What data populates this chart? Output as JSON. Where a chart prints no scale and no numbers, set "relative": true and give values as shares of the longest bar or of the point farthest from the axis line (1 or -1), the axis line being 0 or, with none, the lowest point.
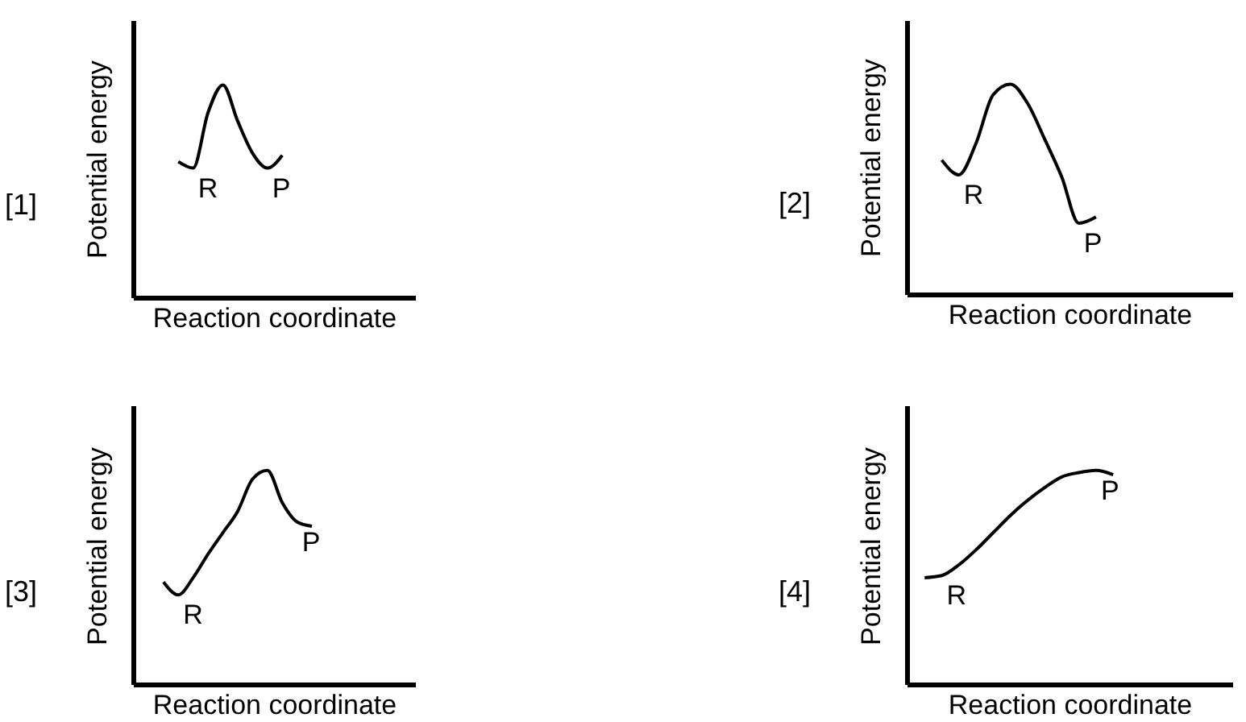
{
  "chart_data": [
    {
      "type": "line",
      "title": "[1]",
      "xlabel": "Reaction coordinate",
      "ylabel": "Potential energy",
      "relative": true,
      "categories": [
        null,
        null,
        null,
        null,
        null,
        null,
        null,
        null,
        null,
        null,
        null,
        null,
        null,
        null,
        null,
        null,
        null,
        null,
        null,
        null
      ],
      "series": [
        {
          "color": "#000000",
          "values": [
            null,
            null,
            null,
            0.64,
            0.61,
            0.87,
            1,
            0.83,
            0.68,
            0.61,
            0.67,
            null,
            null,
            null,
            null,
            null,
            null,
            null,
            null,
            null
          ]
        }
      ],
      "annotations": [
        "R",
        "P"
      ]
    },
    {
      "type": "line",
      "title": "[2]",
      "xlabel": "Reaction coordinate",
      "ylabel": "Potential energy",
      "relative": true,
      "categories": [
        null,
        null,
        null,
        null,
        null,
        null,
        null,
        null,
        null,
        null,
        null,
        null,
        null,
        null,
        null,
        null,
        null,
        null,
        null,
        null
      ],
      "series": [
        {
          "color": "#000000",
          "values": [
            null,
            null,
            0.64,
            0.57,
            0.72,
            0.95,
            1,
            0.91,
            0.74,
            0.56,
            0.34,
            0.37,
            null,
            null,
            null,
            null,
            null,
            null,
            null,
            null
          ]
        }
      ],
      "annotations": [
        "R",
        "P"
      ]
    },
    {
      "type": "line",
      "title": "[3]",
      "xlabel": "Reaction coordinate",
      "ylabel": "Potential energy",
      "relative": true,
      "categories": [
        null,
        null,
        null,
        null,
        null,
        null,
        null,
        null,
        null,
        null,
        null,
        null,
        null,
        null,
        null,
        null,
        null,
        null,
        null,
        null
      ],
      "series": [
        {
          "color": "#000000",
          "values": [
            null,
            null,
            0.48,
            0.42,
            0.5,
            0.61,
            0.71,
            0.81,
            0.96,
            1,
            0.85,
            0.76,
            0.74,
            null,
            null,
            null,
            null,
            null,
            null,
            null
          ]
        }
      ],
      "annotations": [
        "R",
        "P"
      ]
    },
    {
      "type": "line",
      "title": "[4]",
      "xlabel": "Reaction coordinate",
      "ylabel": "Potential energy",
      "relative": true,
      "categories": [
        null,
        null,
        null,
        null,
        null,
        null,
        null,
        null,
        null,
        null,
        null,
        null,
        null,
        null,
        null,
        null,
        null,
        null,
        null,
        null
      ],
      "series": [
        {
          "color": "#000000",
          "values": [
            null,
            0.5,
            0.51,
            0.56,
            0.63,
            0.71,
            0.79,
            0.86,
            0.92,
            0.97,
            0.99,
            1,
            0.98,
            null,
            null,
            null,
            null,
            null,
            null,
            null
          ]
        }
      ],
      "annotations": [
        "R",
        "P"
      ]
    }
  ]
}
